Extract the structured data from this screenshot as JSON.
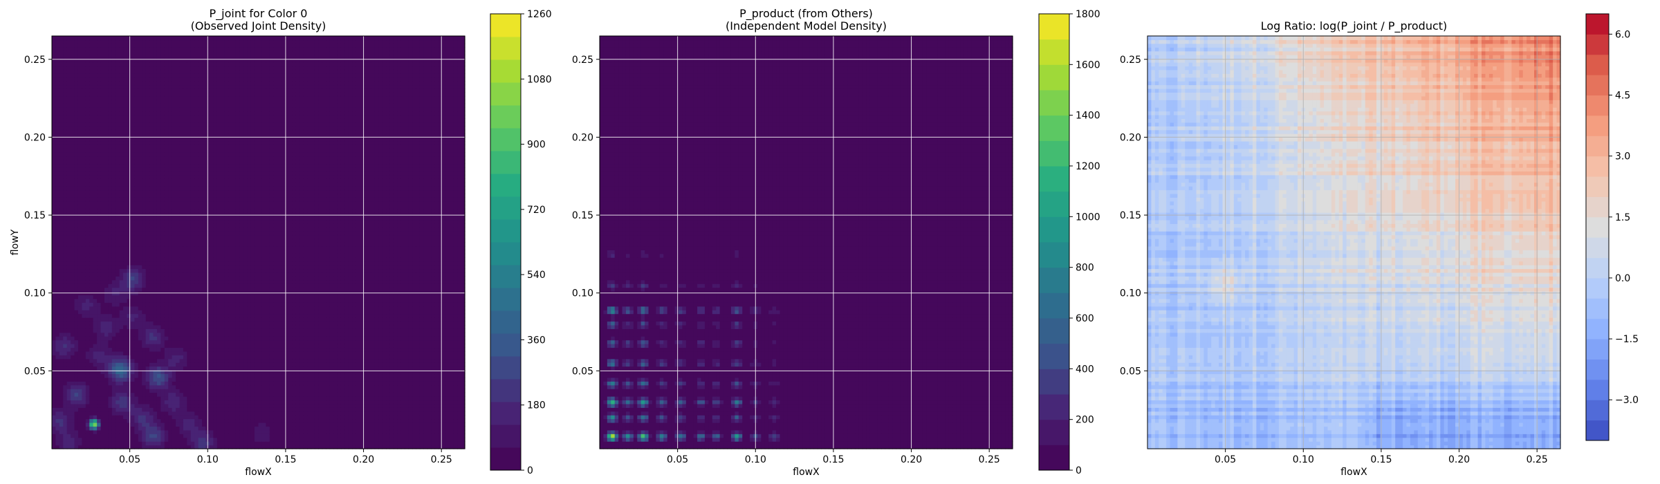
{
  "chart_data": [
    {
      "type": "heatmap",
      "title_line1": "P_joint for Color 0",
      "title_line2": "(Observed Joint Density)",
      "xlabel": "flowX",
      "ylabel": "flowY",
      "xlim": [
        0.0,
        0.265
      ],
      "ylim": [
        0.0,
        0.265
      ],
      "xticks": [
        0.05,
        0.1,
        0.15,
        0.2,
        0.25
      ],
      "xtick_labels": [
        "0.05",
        "0.10",
        "0.15",
        "0.20",
        "0.25"
      ],
      "yticks": [
        0.05,
        0.1,
        0.15,
        0.2,
        0.25
      ],
      "ytick_labels": [
        "0.05",
        "0.10",
        "0.15",
        "0.20",
        "0.25"
      ],
      "grid": true,
      "colormap": "viridis",
      "colorbar": {
        "min": 0,
        "max": 1260,
        "ticks": [
          0,
          180,
          360,
          540,
          720,
          900,
          1080,
          1260
        ],
        "tick_labels": [
          "0",
          "180",
          "360",
          "540",
          "720",
          "900",
          "1080",
          "1260"
        ],
        "levels": 20
      },
      "hotspots": [
        {
          "x": 0.027,
          "y": 0.016,
          "value": 1050
        },
        {
          "x": 0.044,
          "y": 0.051,
          "value": 420
        },
        {
          "x": 0.052,
          "y": 0.109,
          "value": 260
        },
        {
          "x": 0.068,
          "y": 0.046,
          "value": 320
        },
        {
          "x": 0.065,
          "y": 0.072,
          "value": 200
        },
        {
          "x": 0.065,
          "y": 0.008,
          "value": 260
        },
        {
          "x": 0.016,
          "y": 0.035,
          "value": 260
        },
        {
          "x": 0.008,
          "y": 0.066,
          "value": 200
        },
        {
          "x": 0.035,
          "y": 0.078,
          "value": 170
        },
        {
          "x": 0.022,
          "y": 0.092,
          "value": 150
        },
        {
          "x": 0.045,
          "y": 0.03,
          "value": 230
        },
        {
          "x": 0.097,
          "y": 0.004,
          "value": 230
        },
        {
          "x": 0.078,
          "y": 0.03,
          "value": 180
        },
        {
          "x": 0.005,
          "y": 0.018,
          "value": 200
        },
        {
          "x": 0.058,
          "y": 0.02,
          "value": 190
        },
        {
          "x": 0.08,
          "y": 0.058,
          "value": 150
        },
        {
          "x": 0.135,
          "y": 0.01,
          "value": 110
        },
        {
          "x": 0.04,
          "y": 0.1,
          "value": 130
        },
        {
          "x": 0.011,
          "y": 0.004,
          "value": 160
        },
        {
          "x": 0.03,
          "y": 0.06,
          "value": 150
        },
        {
          "x": 0.052,
          "y": 0.085,
          "value": 140
        },
        {
          "x": 0.088,
          "y": 0.016,
          "value": 150
        }
      ]
    },
    {
      "type": "heatmap",
      "title_line1": "P_product (from Others)",
      "title_line2": "(Independent Model Density)",
      "xlabel": "flowX",
      "ylabel": "",
      "xlim": [
        0.0,
        0.265
      ],
      "ylim": [
        0.0,
        0.265
      ],
      "xticks": [
        0.05,
        0.1,
        0.15,
        0.2,
        0.25
      ],
      "xtick_labels": [
        "0.05",
        "0.10",
        "0.15",
        "0.20",
        "0.25"
      ],
      "yticks": [
        0.05,
        0.1,
        0.15,
        0.2,
        0.25
      ],
      "ytick_labels": [
        "0.05",
        "0.10",
        "0.15",
        "0.20",
        "0.25"
      ],
      "grid": true,
      "colormap": "viridis",
      "colorbar": {
        "min": 0,
        "max": 1800,
        "ticks": [
          0,
          200,
          400,
          600,
          800,
          1000,
          1200,
          1400,
          1600,
          1800
        ],
        "tick_labels": [
          "0",
          "200",
          "400",
          "600",
          "800",
          "1000",
          "1200",
          "1400",
          "1600",
          "1800"
        ],
        "levels": 18
      },
      "marginal_x_peaks": [
        0.008,
        0.018,
        0.028,
        0.04,
        0.052,
        0.065,
        0.075,
        0.088,
        0.1,
        0.112
      ],
      "marginal_x_weights": [
        1.0,
        0.55,
        0.8,
        0.5,
        0.45,
        0.4,
        0.35,
        0.6,
        0.3,
        0.25
      ],
      "marginal_y_peaks": [
        0.008,
        0.02,
        0.03,
        0.042,
        0.055,
        0.068,
        0.08,
        0.089,
        0.105,
        0.125
      ],
      "marginal_y_weights": [
        1.0,
        0.55,
        0.75,
        0.5,
        0.45,
        0.4,
        0.35,
        0.55,
        0.25,
        0.15
      ]
    },
    {
      "type": "heatmap",
      "title_line1": "Log Ratio: log(P_joint / P_product)",
      "title_line2": "",
      "xlabel": "flowX",
      "ylabel": "",
      "xlim": [
        0.0,
        0.265
      ],
      "ylim": [
        0.0,
        0.265
      ],
      "xticks": [
        0.05,
        0.1,
        0.15,
        0.2,
        0.25
      ],
      "xtick_labels": [
        "0.05",
        "0.10",
        "0.15",
        "0.20",
        "0.25"
      ],
      "yticks": [
        0.05,
        0.1,
        0.15,
        0.2,
        0.25
      ],
      "ytick_labels": [
        "0.05",
        "0.10",
        "0.15",
        "0.20",
        "0.25"
      ],
      "grid": true,
      "colormap": "coolwarm",
      "colorbar": {
        "min": -4.0,
        "max": 6.5,
        "ticks": [
          -3.0,
          -1.5,
          0.0,
          1.5,
          3.0,
          4.5,
          6.0
        ],
        "tick_labels": [
          "−3.0",
          "−1.5",
          "0.0",
          "1.5",
          "3.0",
          "4.5",
          "6.0"
        ],
        "levels": 21
      }
    }
  ]
}
